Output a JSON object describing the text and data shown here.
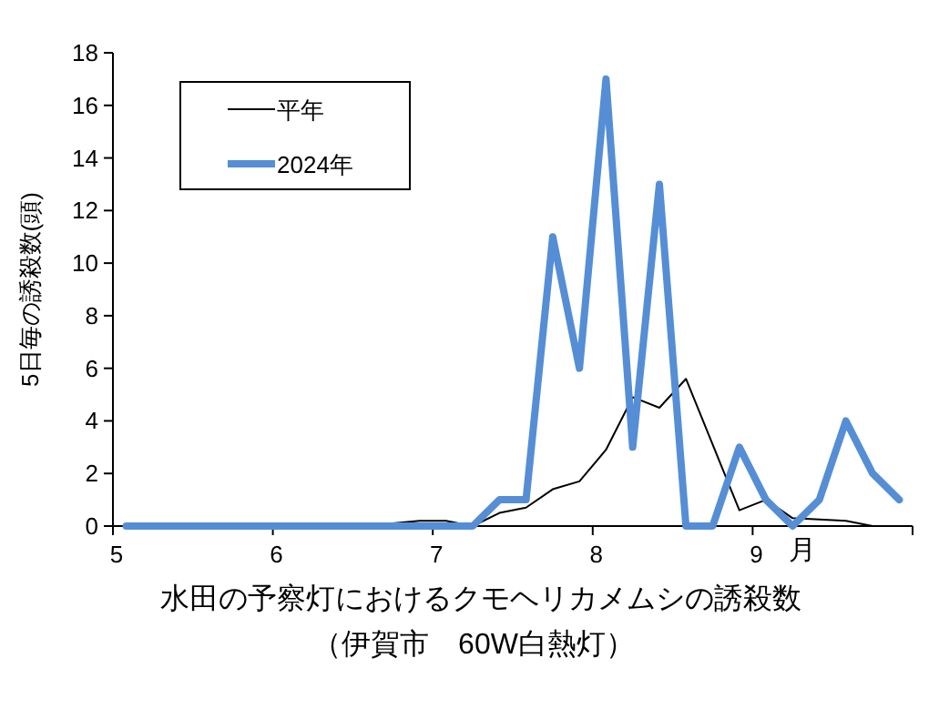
{
  "chart_data": {
    "type": "line",
    "title": "水田の予察灯におけるクモヘリカメムシの誘殺数",
    "subtitle": "（伊賀市　60W白熱灯）",
    "ylabel": "5日毎の誘殺数(頭)",
    "annotations": [
      "月"
    ],
    "xlim": [
      5,
      10
    ],
    "xticks": [
      5,
      6,
      7,
      8,
      9,
      {
        "value": 10,
        "label": null
      }
    ],
    "ylim": [
      0,
      18
    ],
    "yticks": [
      0,
      2,
      4,
      6,
      8,
      10,
      12,
      14,
      16,
      18
    ],
    "grid": false,
    "legend": "top left",
    "marker": "none",
    "line_style": "solid",
    "x": [
      5.083,
      5.25,
      5.417,
      5.583,
      5.75,
      5.917,
      6.083,
      6.25,
      6.417,
      6.583,
      6.75,
      6.917,
      7.083,
      7.25,
      7.417,
      7.583,
      7.75,
      7.917,
      8.083,
      8.25,
      8.417,
      8.583,
      8.75,
      8.917,
      9.083,
      9.25,
      9.417,
      9.583,
      9.75,
      9.917
    ],
    "series": [
      {
        "name": "平年",
        "color": "#000000",
        "values": [
          0,
          0,
          0,
          0,
          0,
          0,
          0,
          0,
          0,
          0,
          0.1,
          0.2,
          0.2,
          0,
          0.5,
          0.7,
          1.4,
          1.7,
          2.9,
          4.9,
          4.5,
          5.6,
          3.1,
          0.6,
          1,
          0.3,
          0.25,
          0.2,
          0,
          0
        ]
      },
      {
        "name": "2024年",
        "color": "#558ed5",
        "values": [
          0,
          0,
          0,
          0,
          0,
          0,
          0,
          0,
          0,
          0,
          0,
          0,
          0,
          0,
          1,
          1,
          11,
          6,
          17,
          3,
          13,
          0,
          0,
          3,
          1,
          0,
          1,
          4,
          2,
          1
        ]
      }
    ]
  }
}
